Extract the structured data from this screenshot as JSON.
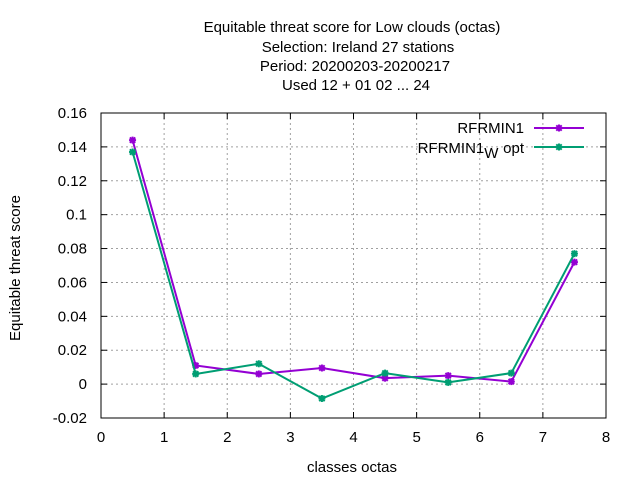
{
  "chart_data": {
    "type": "line",
    "title_lines": [
      "Equitable threat score  for Low clouds (octas)",
      "Selection: Ireland     27 stations",
      "Period: 20200203-20200217",
      "Used  12 + 01 02 ... 24"
    ],
    "xlabel": "classes octas",
    "ylabel": "Equitable threat score",
    "xlim": [
      0,
      8
    ],
    "ylim": [
      -0.02,
      0.16
    ],
    "xticks": [
      "0",
      "1",
      "2",
      "3",
      "4",
      "5",
      "6",
      "7",
      "8"
    ],
    "yticks": [
      "-0.02",
      "0",
      "0.02",
      "0.04",
      "0.06",
      "0.08",
      "0.1",
      "0.12",
      "0.14",
      "0.16"
    ],
    "grid": true,
    "legend_position": "top-right",
    "x": [
      0.5,
      1.5,
      2.5,
      3.5,
      4.5,
      5.5,
      6.5,
      7.5
    ],
    "series": [
      {
        "name": "RFRMIN1",
        "color": "#9400d3",
        "values": [
          0.144,
          0.011,
          0.006,
          0.0095,
          0.0035,
          0.005,
          0.0015,
          0.072
        ]
      },
      {
        "name_main": "RFRMIN1",
        "name_sub": "W",
        "name_suffix": "opt",
        "color": "#009e73",
        "values": [
          0.137,
          0.006,
          0.012,
          -0.0085,
          0.0065,
          0.001,
          0.0065,
          0.077
        ]
      }
    ]
  }
}
